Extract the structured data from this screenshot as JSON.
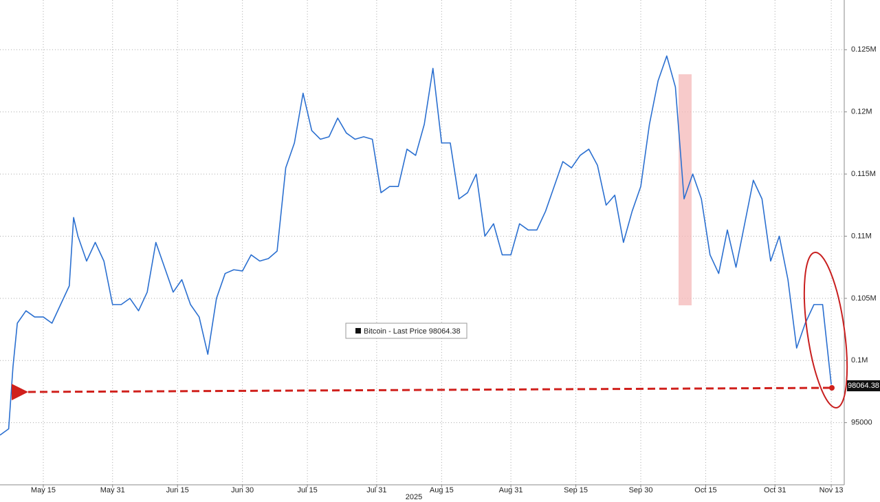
{
  "chart_data": {
    "type": "line",
    "x": [
      "2025-05-05",
      "2025-05-07",
      "2025-05-08",
      "2025-05-09",
      "2025-05-11",
      "2025-05-13",
      "2025-05-15",
      "2025-05-17",
      "2025-05-19",
      "2025-05-21",
      "2025-05-22",
      "2025-05-23",
      "2025-05-25",
      "2025-05-27",
      "2025-05-29",
      "2025-05-31",
      "2025-06-02",
      "2025-06-04",
      "2025-06-06",
      "2025-06-08",
      "2025-06-10",
      "2025-06-12",
      "2025-06-14",
      "2025-06-16",
      "2025-06-18",
      "2025-06-20",
      "2025-06-22",
      "2025-06-24",
      "2025-06-26",
      "2025-06-28",
      "2025-06-30",
      "2025-07-02",
      "2025-07-04",
      "2025-07-06",
      "2025-07-08",
      "2025-07-10",
      "2025-07-12",
      "2025-07-14",
      "2025-07-16",
      "2025-07-18",
      "2025-07-20",
      "2025-07-22",
      "2025-07-24",
      "2025-07-26",
      "2025-07-28",
      "2025-07-30",
      "2025-08-01",
      "2025-08-03",
      "2025-08-05",
      "2025-08-07",
      "2025-08-09",
      "2025-08-11",
      "2025-08-13",
      "2025-08-15",
      "2025-08-17",
      "2025-08-19",
      "2025-08-21",
      "2025-08-23",
      "2025-08-25",
      "2025-08-27",
      "2025-08-29",
      "2025-08-31",
      "2025-09-02",
      "2025-09-04",
      "2025-09-06",
      "2025-09-08",
      "2025-09-10",
      "2025-09-12",
      "2025-09-14",
      "2025-09-16",
      "2025-09-18",
      "2025-09-20",
      "2025-09-22",
      "2025-09-24",
      "2025-09-26",
      "2025-09-28",
      "2025-09-30",
      "2025-10-02",
      "2025-10-04",
      "2025-10-06",
      "2025-10-08",
      "2025-10-10",
      "2025-10-12",
      "2025-10-14",
      "2025-10-16",
      "2025-10-18",
      "2025-10-20",
      "2025-10-22",
      "2025-10-24",
      "2025-10-26",
      "2025-10-28",
      "2025-10-30",
      "2025-11-01",
      "2025-11-03",
      "2025-11-05",
      "2025-11-07",
      "2025-11-09",
      "2025-11-11",
      "2025-11-13"
    ],
    "series": [
      {
        "name": "Bitcoin - Last Price",
        "color": "#2a6fd0",
        "values": [
          94000,
          94500,
          99500,
          103000,
          104000,
          103500,
          103500,
          103000,
          104500,
          106000,
          111500,
          110000,
          108000,
          109500,
          108000,
          104500,
          104500,
          105000,
          104000,
          105500,
          109500,
          107500,
          105500,
          106500,
          104500,
          103500,
          100500,
          105000,
          107000,
          107300,
          107200,
          108500,
          108000,
          108200,
          108800,
          115500,
          117500,
          121500,
          118500,
          117800,
          118000,
          119500,
          118300,
          117800,
          118000,
          117800,
          113500,
          114000,
          114000,
          117000,
          116500,
          119000,
          123500,
          117500,
          117500,
          113000,
          113500,
          115000,
          110000,
          111000,
          108500,
          108500,
          111000,
          110500,
          110500,
          112000,
          114000,
          116000,
          115500,
          116500,
          117000,
          115700,
          112500,
          113300,
          109500,
          112000,
          114000,
          119000,
          122500,
          124500,
          122000,
          113000,
          115000,
          113000,
          108500,
          107000,
          110500,
          107500,
          111000,
          114500,
          113000,
          108000,
          110000,
          106500,
          101000,
          103000,
          104500,
          104500,
          98064.38
        ]
      }
    ],
    "xlim": [
      "2025-05-05",
      "2025-11-16"
    ],
    "xticks": [
      {
        "value": "2025-05-15",
        "label": "May 15"
      },
      {
        "value": "2025-05-31",
        "label": "May 31"
      },
      {
        "value": "2025-06-15",
        "label": "Jun 15"
      },
      {
        "value": "2025-06-30",
        "label": "Jun 30"
      },
      {
        "value": "2025-07-15",
        "label": "Jul 15"
      },
      {
        "value": "2025-07-31",
        "label": "Jul 31"
      },
      {
        "value": "2025-08-15",
        "label": "Aug 15"
      },
      {
        "value": "2025-08-31",
        "label": "Aug 31"
      },
      {
        "value": "2025-09-15",
        "label": "Sep 15"
      },
      {
        "value": "2025-09-30",
        "label": "Sep 30"
      },
      {
        "value": "2025-10-15",
        "label": "Oct 15"
      },
      {
        "value": "2025-10-31",
        "label": "Oct 31"
      },
      {
        "value": "2025-11-13",
        "label": "Nov 13"
      }
    ],
    "x_axis_label": "2025",
    "ylim": [
      90000,
      129000
    ],
    "yticks": [
      95000,
      {
        "value": 100000,
        "label": "0.1M"
      },
      {
        "value": 105000,
        "label": "0.105M"
      },
      {
        "value": 110000,
        "label": "0.11M"
      },
      {
        "value": 115000,
        "label": "0.115M"
      },
      {
        "value": 120000,
        "label": "0.12M"
      },
      {
        "value": 125000,
        "label": "0.125M"
      }
    ],
    "grid": true
  }
}
